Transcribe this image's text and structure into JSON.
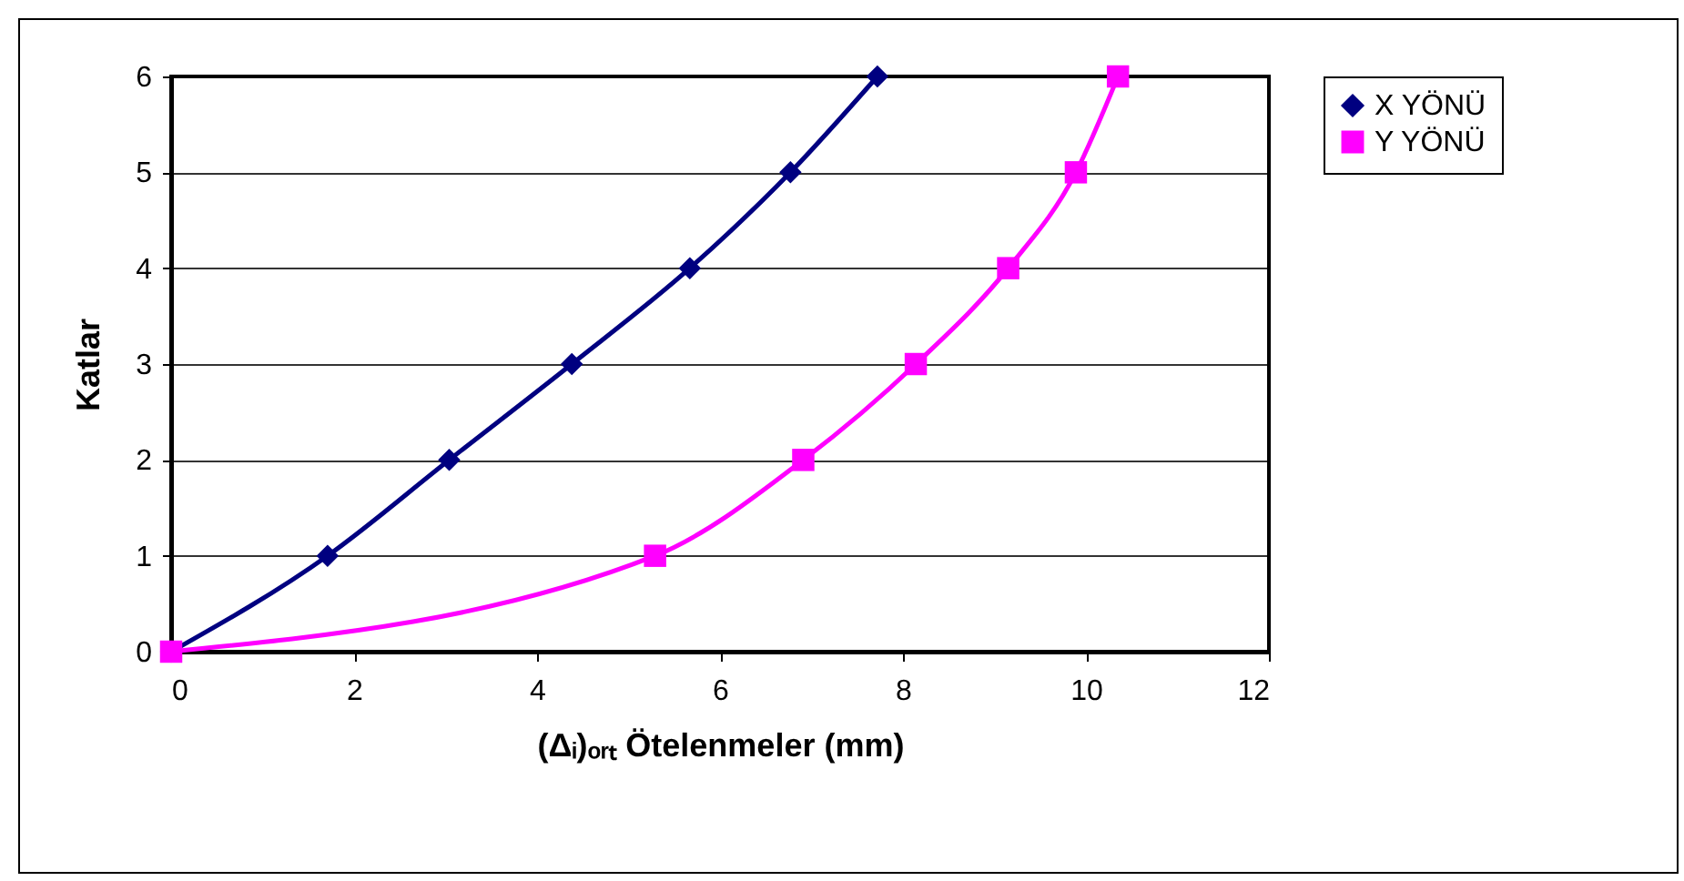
{
  "chart_data": {
    "type": "line",
    "xlabel": "(Δᵢ)ₒᵣₜ Ötelenmeler (mm)",
    "ylabel": "Katlar",
    "xlim": [
      0,
      12
    ],
    "xticks": [
      0,
      2,
      4,
      6,
      8,
      10,
      12
    ],
    "ylim": [
      0,
      6
    ],
    "yticks": [
      0,
      1,
      2,
      3,
      4,
      5,
      6
    ],
    "grid": "y",
    "legend": "right",
    "series": [
      {
        "name": "X YÖNÜ",
        "color": "#000080",
        "marker": "diamond",
        "x": [
          0,
          1.71,
          3.04,
          4.38,
          5.67,
          6.77,
          7.72
        ],
        "values": [
          0,
          1,
          2,
          3,
          4,
          5,
          6
        ]
      },
      {
        "name": "Y YÖNÜ",
        "color": "#ff00ff",
        "marker": "square",
        "x": [
          0,
          5.29,
          6.91,
          8.14,
          9.15,
          9.89,
          10.35
        ],
        "values": [
          0,
          1,
          2,
          3,
          4,
          5,
          6
        ]
      }
    ]
  }
}
